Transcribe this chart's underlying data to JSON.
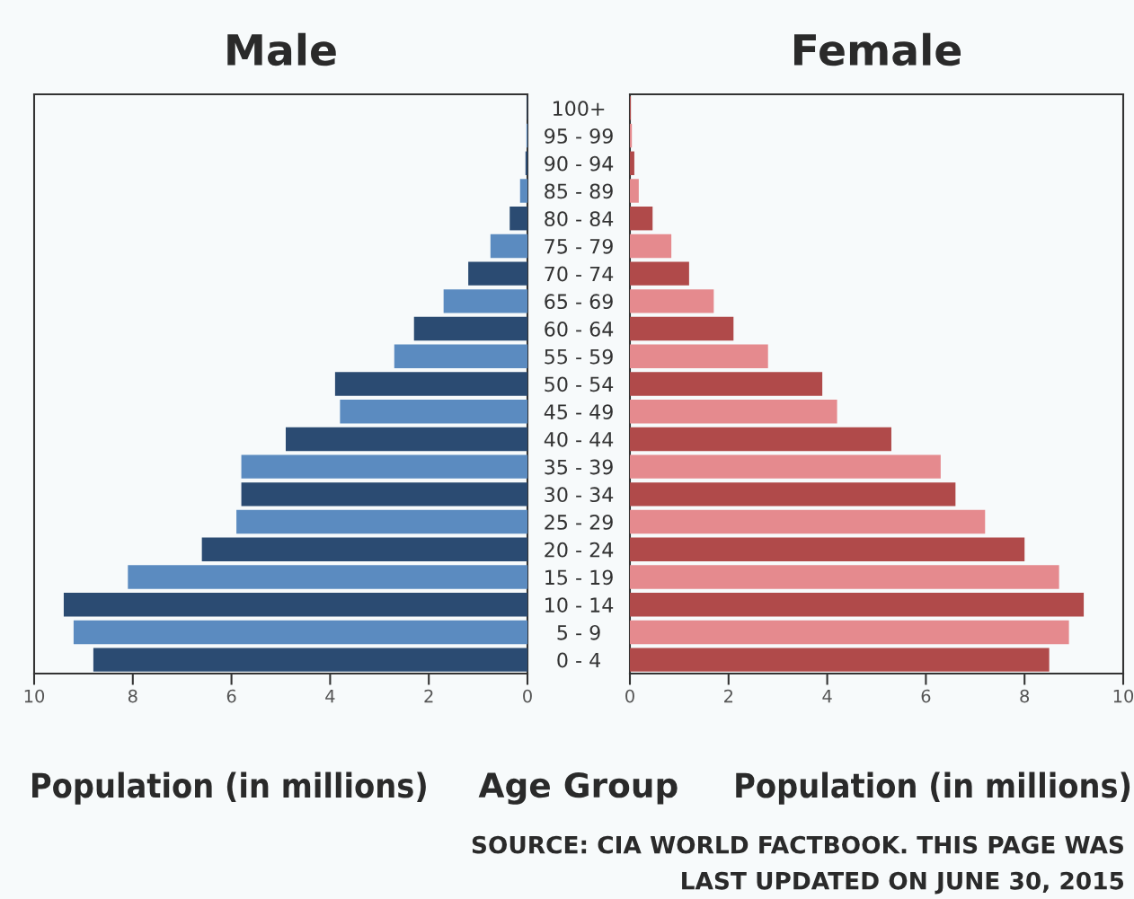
{
  "chart_data": [
    {
      "type": "bar",
      "orientation": "horizontal",
      "title": "Male",
      "xlabel": "Population (in millions)",
      "categories": [
        null,
        null,
        null,
        null,
        null,
        null,
        null,
        null,
        null,
        null,
        null,
        null,
        null,
        null,
        null,
        null,
        null,
        null,
        null,
        null,
        null
      ],
      "values": [
        0.01,
        0.02,
        0.04,
        0.15,
        0.36,
        0.75,
        1.2,
        1.7,
        2.3,
        2.7,
        3.9,
        3.8,
        4.9,
        5.8,
        5.8,
        5.9,
        6.6,
        8.1,
        9.4,
        9.2,
        8.8
      ],
      "colors": [
        "#2b4b72",
        "#5b8bc0",
        "#2b4b72",
        "#5b8bc0",
        "#2b4b72",
        "#5b8bc0",
        "#2b4b72",
        "#5b8bc0",
        "#2b4b72",
        "#5b8bc0",
        "#2b4b72",
        "#5b8bc0",
        "#2b4b72",
        "#5b8bc0",
        "#2b4b72",
        "#5b8bc0",
        "#2b4b72",
        "#5b8bc0",
        "#2b4b72",
        "#5b8bc0",
        "#2b4b72"
      ],
      "xlim": [
        10,
        0
      ],
      "xticks": [
        10,
        8,
        6,
        4,
        2,
        0
      ]
    },
    {
      "type": "bar",
      "orientation": "horizontal",
      "title": "Female",
      "xlabel": "Population (in millions)",
      "ylabel": "Age Group",
      "categories": [
        "100+",
        "95 - 99",
        "90 - 94",
        "85 - 89",
        "80 - 84",
        "75 - 79",
        "70 - 74",
        "65 - 69",
        "60 - 64",
        "55 - 59",
        "50 - 54",
        "45 - 49",
        "40 - 44",
        "35 - 39",
        "30 - 34",
        "25 - 29",
        "20 - 24",
        "15 - 19",
        "10 - 14",
        "5 - 9",
        "0 - 4"
      ],
      "values": [
        0.02,
        0.04,
        0.09,
        0.18,
        0.46,
        0.84,
        1.2,
        1.7,
        2.1,
        2.8,
        3.9,
        4.2,
        5.3,
        6.3,
        6.6,
        7.2,
        8.0,
        8.7,
        9.2,
        8.9,
        8.5
      ],
      "colors": [
        "#b04a4a",
        "#e58a8e",
        "#b04a4a",
        "#e58a8e",
        "#b04a4a",
        "#e58a8e",
        "#b04a4a",
        "#e58a8e",
        "#b04a4a",
        "#e58a8e",
        "#b04a4a",
        "#e58a8e",
        "#b04a4a",
        "#e58a8e",
        "#b04a4a",
        "#e58a8e",
        "#b04a4a",
        "#e58a8e",
        "#b04a4a",
        "#e58a8e",
        "#b04a4a"
      ],
      "xlim": [
        0,
        10
      ],
      "xticks": [
        0,
        2,
        4,
        6,
        8,
        10
      ],
      "annotations": [
        "SOURCE: CIA WORLD FACTBOOK. THIS PAGE WAS",
        "LAST UPDATED ON JUNE 30, 2015"
      ]
    }
  ]
}
